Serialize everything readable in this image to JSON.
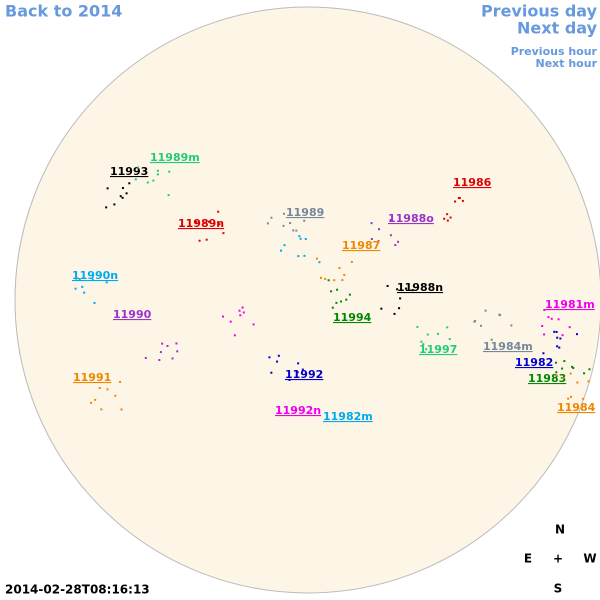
{
  "nav": {
    "back": "Back to 2014",
    "previous_day": "Previous day",
    "next_day": "Next day",
    "previous_hour": "Previous hour",
    "next_hour": "Next hour"
  },
  "timestamp": "2014-02-28T08:16:13",
  "compass": {
    "north": "N",
    "east": "E",
    "center": "+",
    "west": "W",
    "south": "S"
  },
  "regions": [
    {
      "label": "11993",
      "color": "#000000"
    },
    {
      "label": "11989m",
      "color": "#22cc77"
    },
    {
      "label": "11986",
      "color": "#dd0000"
    },
    {
      "label": "11989",
      "color": "#778899"
    },
    {
      "label": "11988o",
      "color": "#9933cc"
    },
    {
      "label": "11989n",
      "color": "#dd0000"
    },
    {
      "label": "11987",
      "color": "#ee8800"
    },
    {
      "label": "11990n",
      "color": "#00aaee"
    },
    {
      "label": "11988n",
      "color": "#000000"
    },
    {
      "label": "11981m",
      "color": "#ee00ee"
    },
    {
      "label": "11990",
      "color": "#9933cc"
    },
    {
      "label": "11994",
      "color": "#008800"
    },
    {
      "label": "11984m",
      "color": "#778899"
    },
    {
      "label": "11997",
      "color": "#22cc77"
    },
    {
      "label": "11982",
      "color": "#0000cc"
    },
    {
      "label": "11991",
      "color": "#ee8800"
    },
    {
      "label": "11992",
      "color": "#0000cc"
    },
    {
      "label": "11983",
      "color": "#008800"
    },
    {
      "label": "11984",
      "color": "#ee8800"
    },
    {
      "label": "11992n",
      "color": "#ee00ee"
    },
    {
      "label": "11982m",
      "color": "#00aaee"
    }
  ]
}
